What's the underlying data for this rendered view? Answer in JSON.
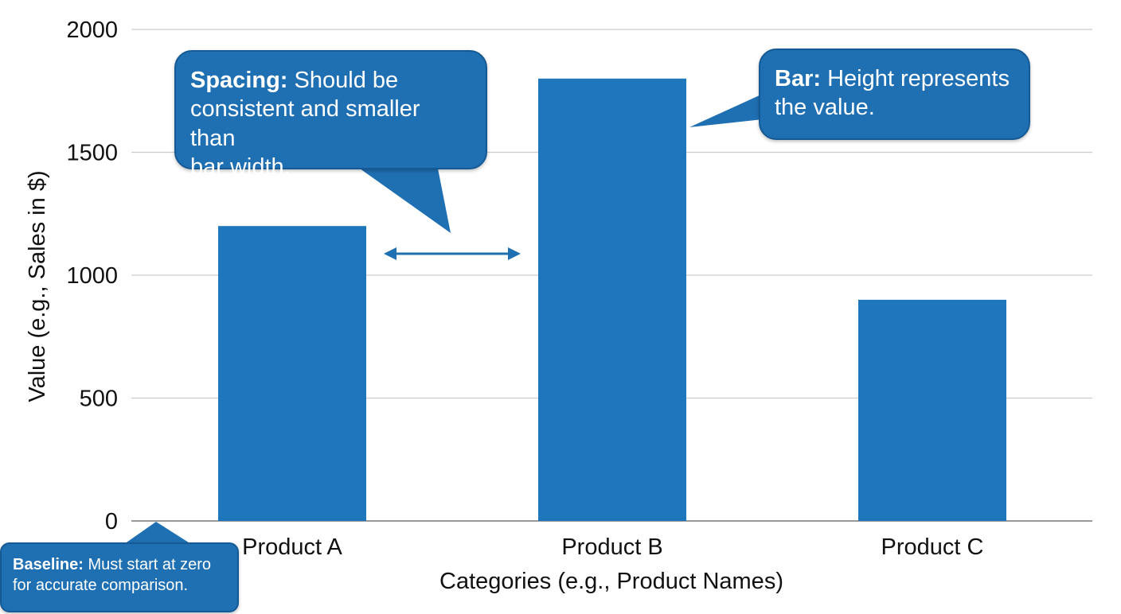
{
  "colors": {
    "bar": "#1f77bb",
    "grid": "#cccccc",
    "axis_text": "#111111",
    "callout": "#1f6fb3",
    "arrow": "#1f6fb3"
  },
  "chart_data": {
    "type": "bar",
    "categories": [
      "Product A",
      "Product B",
      "Product C"
    ],
    "values": [
      1200,
      1800,
      900
    ],
    "title": "",
    "xlabel": "Categories (e.g., Product Names)",
    "ylabel": "Value (e.g., Sales in $)",
    "ylim": [
      0,
      2000
    ],
    "yticks": [
      0,
      500,
      1000,
      1500,
      2000
    ],
    "grid": true,
    "legend": "none"
  },
  "annotations": {
    "spacing": {
      "title": "Spacing:",
      "line1": "Should be",
      "line2": "consistent and smaller than",
      "line3": "bar width."
    },
    "bar": {
      "title": "Bar:",
      "line1": "Height represents",
      "line2": "the value."
    },
    "baseline": {
      "title": "Baseline:",
      "line1": "Must start at zero",
      "line2": "for accurate comparison."
    }
  }
}
